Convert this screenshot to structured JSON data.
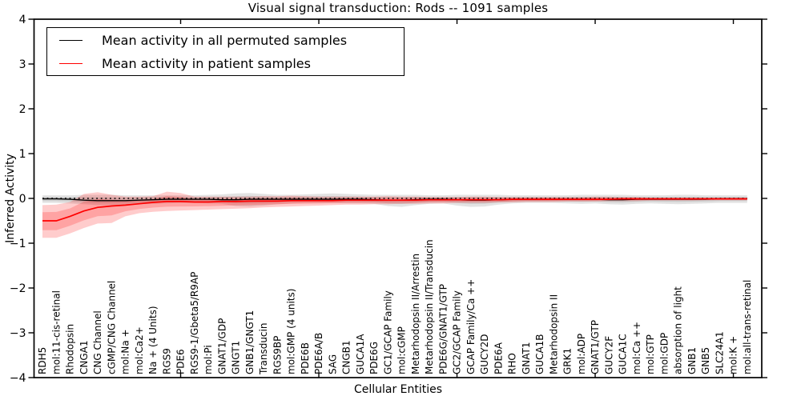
{
  "title": "Visual signal transduction: Rods -- 1091 samples",
  "legend": {
    "permuted": "Mean activity in all permuted samples",
    "patient": "Mean activity in patient samples"
  },
  "axes": {
    "ylabel": "Inferred Activity",
    "xlabel": "Cellular Entities",
    "ytick_labels": [
      "4",
      "3",
      "2",
      "1",
      "0",
      "−1",
      "−2",
      "−3",
      "−4"
    ],
    "ytick_values": [
      4,
      3,
      2,
      1,
      0,
      -1,
      -2,
      -3,
      -4
    ]
  },
  "colors": {
    "permuted_line": "#000000",
    "patient_line": "#ff0000",
    "permuted_band": "rgba(128,128,128,0.22)",
    "patient_band": "rgba(255,0,0,0.20)",
    "frame": "#000000"
  },
  "chart_data": {
    "type": "line",
    "title": "Visual signal transduction: Rods -- 1091 samples",
    "xlabel": "Cellular Entities",
    "ylabel": "Inferred Activity",
    "ylim": [
      -4,
      4
    ],
    "grid": false,
    "legend_position": "upper left",
    "reference_line": {
      "y": 0,
      "style": "dotted",
      "color": "#000000"
    },
    "categories": [
      "RDH5",
      "mol:11-cis-retinal",
      "Rhodopsin",
      "CNGA1",
      "CNG Channel",
      "cGMP/CNG Channel",
      "mol:Na +",
      "mol:Ca2+",
      "Na + (4 Units)",
      "RGS9",
      "PDE6",
      "RGS9-1/Gbeta5/R9AP",
      "mol:Pi",
      "GNAT1/GDP",
      "GNGT1",
      "GNB1/GNGT1",
      "Transducin",
      "RGS9BP",
      "mol:GMP (4 units)",
      "PDE6B",
      "PDE6A/B",
      "SAG",
      "CNGB1",
      "GUCA1A",
      "PDE6G",
      "GC1/GCAP Family",
      "mol:cGMP",
      "Metarhodopsin II/Arrestin",
      "Metarhodopsin II/Transducin",
      "PDE6G/GNAT1/GTP",
      "GC2/GCAP Family",
      "GCAP Family/Ca ++",
      "GUCY2D",
      "PDE6A",
      "RHO",
      "GNAT1",
      "GUCA1B",
      "Metarhodopsin II",
      "GRK1",
      "mol:ADP",
      "GNAT1/GTP",
      "GUCY2F",
      "GUCA1C",
      "mol:Ca ++",
      "mol:GTP",
      "mol:GDP",
      "absorption of light",
      "GNB1",
      "GNB5",
      "SLC24A1",
      "mol:K +",
      "mol:all-trans-retinal"
    ],
    "series": [
      {
        "name": "Mean activity in all permuted samples",
        "color": "#000000",
        "band_color": "rgba(128,128,128,0.22)",
        "values": [
          -0.01,
          -0.01,
          -0.02,
          -0.04,
          -0.05,
          -0.05,
          -0.05,
          -0.04,
          -0.03,
          -0.02,
          -0.02,
          -0.02,
          -0.02,
          -0.03,
          -0.03,
          -0.02,
          -0.02,
          -0.02,
          -0.02,
          -0.02,
          -0.02,
          -0.02,
          -0.02,
          -0.02,
          -0.03,
          -0.04,
          -0.04,
          -0.03,
          -0.02,
          -0.02,
          -0.03,
          -0.04,
          -0.04,
          -0.03,
          -0.02,
          -0.02,
          -0.02,
          -0.02,
          -0.02,
          -0.02,
          -0.02,
          -0.03,
          -0.03,
          -0.02,
          -0.02,
          -0.02,
          -0.02,
          -0.02,
          -0.02,
          -0.01,
          -0.01,
          -0.01
        ],
        "band_lo": [
          -0.1,
          -0.1,
          -0.11,
          -0.13,
          -0.15,
          -0.15,
          -0.14,
          -0.13,
          -0.12,
          -0.11,
          -0.1,
          -0.1,
          -0.11,
          -0.12,
          -0.17,
          -0.18,
          -0.16,
          -0.13,
          -0.11,
          -0.1,
          -0.1,
          -0.1,
          -0.11,
          -0.11,
          -0.12,
          -0.17,
          -0.19,
          -0.15,
          -0.12,
          -0.11,
          -0.16,
          -0.19,
          -0.18,
          -0.14,
          -0.11,
          -0.1,
          -0.1,
          -0.1,
          -0.11,
          -0.12,
          -0.11,
          -0.13,
          -0.14,
          -0.12,
          -0.11,
          -0.12,
          -0.13,
          -0.12,
          -0.11,
          -0.1,
          -0.1,
          -0.1
        ],
        "band_hi": [
          0.07,
          0.07,
          0.07,
          0.08,
          0.08,
          0.08,
          0.07,
          0.07,
          0.07,
          0.07,
          0.07,
          0.07,
          0.08,
          0.09,
          0.11,
          0.12,
          0.1,
          0.08,
          0.08,
          0.09,
          0.1,
          0.11,
          0.1,
          0.09,
          0.08,
          0.08,
          0.08,
          0.08,
          0.07,
          0.07,
          0.08,
          0.08,
          0.08,
          0.08,
          0.07,
          0.07,
          0.07,
          0.07,
          0.07,
          0.08,
          0.08,
          0.08,
          0.08,
          0.07,
          0.07,
          0.07,
          0.08,
          0.08,
          0.07,
          0.07,
          0.07,
          0.07
        ]
      },
      {
        "name": "Mean activity in patient samples",
        "color": "#ff0000",
        "band_color": "rgba(255,0,0,0.20)",
        "values": [
          -0.5,
          -0.5,
          -0.4,
          -0.28,
          -0.2,
          -0.17,
          -0.15,
          -0.12,
          -0.09,
          -0.07,
          -0.07,
          -0.08,
          -0.08,
          -0.07,
          -0.07,
          -0.06,
          -0.06,
          -0.06,
          -0.05,
          -0.05,
          -0.05,
          -0.05,
          -0.04,
          -0.04,
          -0.04,
          -0.04,
          -0.04,
          -0.04,
          -0.03,
          -0.03,
          -0.03,
          -0.03,
          -0.03,
          -0.03,
          -0.02,
          -0.02,
          -0.02,
          -0.02,
          -0.02,
          -0.02,
          -0.02,
          -0.02,
          -0.01,
          -0.01,
          -0.01,
          -0.01,
          -0.01,
          -0.01,
          -0.01,
          -0.01,
          -0.01,
          -0.01
        ],
        "band_lo": [
          -0.88,
          -0.88,
          -0.78,
          -0.66,
          -0.56,
          -0.55,
          -0.4,
          -0.33,
          -0.3,
          -0.28,
          -0.27,
          -0.26,
          -0.25,
          -0.24,
          -0.23,
          -0.22,
          -0.2,
          -0.19,
          -0.18,
          -0.17,
          -0.16,
          -0.15,
          -0.14,
          -0.14,
          -0.13,
          -0.13,
          -0.12,
          -0.12,
          -0.11,
          -0.11,
          -0.1,
          -0.1,
          -0.1,
          -0.09,
          -0.09,
          -0.08,
          -0.08,
          -0.08,
          -0.07,
          -0.07,
          -0.07,
          -0.06,
          -0.06,
          -0.06,
          -0.05,
          -0.05,
          -0.05,
          -0.05,
          -0.04,
          -0.04,
          -0.04,
          -0.04
        ],
        "band_hi": [
          -0.15,
          -0.14,
          -0.08,
          0.1,
          0.14,
          0.08,
          0.04,
          0.04,
          0.05,
          0.15,
          0.12,
          0.04,
          0.04,
          0.04,
          0.04,
          0.04,
          0.05,
          0.05,
          0.06,
          0.05,
          0.04,
          0.04,
          0.04,
          0.04,
          0.04,
          0.05,
          0.04,
          0.04,
          0.03,
          0.03,
          0.03,
          0.04,
          0.04,
          0.03,
          0.03,
          0.03,
          0.03,
          0.03,
          0.03,
          0.03,
          0.04,
          0.04,
          0.03,
          0.03,
          0.02,
          0.02,
          0.02,
          0.02,
          0.02,
          0.02,
          0.02,
          0.02
        ]
      }
    ]
  }
}
